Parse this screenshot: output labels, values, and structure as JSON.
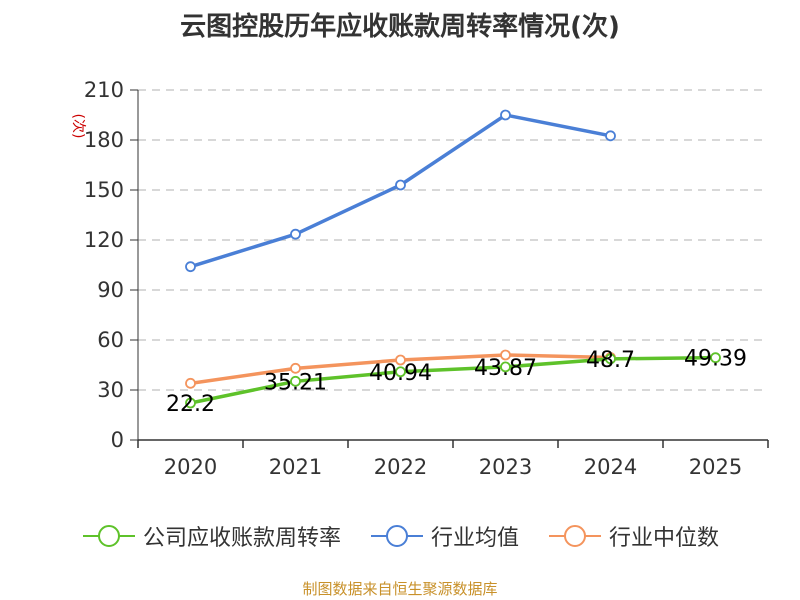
{
  "chart_data": {
    "type": "line",
    "title": "云图控股历年应收账款周转率情况(次)",
    "ylabel": "(次)",
    "xlabel": "",
    "categories": [
      "2020",
      "2021",
      "2022",
      "2023",
      "2024",
      "2025"
    ],
    "ylim": [
      0,
      210
    ],
    "yticks": [
      0,
      30,
      60,
      90,
      120,
      150,
      180,
      210
    ],
    "grid": true,
    "legend_position": "bottom",
    "series": [
      {
        "name": "公司应收账款周转率",
        "color": "#5ec22a",
        "values": [
          22.2,
          35.21,
          40.94,
          43.87,
          48.7,
          49.39
        ],
        "labels": [
          "22.2",
          "35.21",
          "40.94",
          "43.87",
          "48.7",
          "49.39"
        ]
      },
      {
        "name": "行业均值",
        "color": "#4a7fd6",
        "values": [
          104,
          123.5,
          153,
          195,
          182.5,
          null
        ]
      },
      {
        "name": "行业中位数",
        "color": "#f4945d",
        "values": [
          34,
          43,
          48,
          51,
          49.5,
          null
        ]
      }
    ]
  },
  "source": "制图数据来自恒生聚源数据库"
}
